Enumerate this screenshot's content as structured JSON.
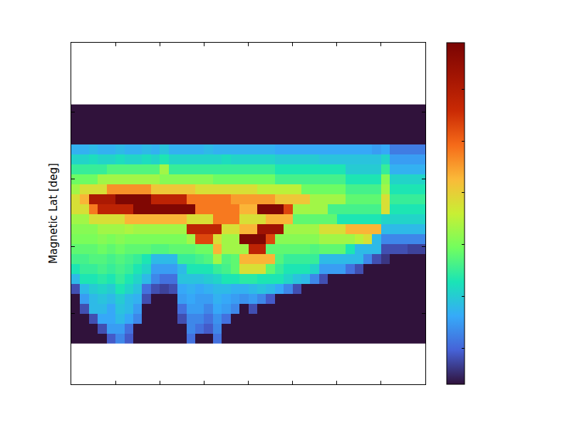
{
  "chart_data": {
    "type": "heatmap",
    "ylabel": "Magnetic Lat [deg]",
    "tick_labels": false,
    "xlim": [
      0,
      8
    ],
    "xticks": [
      1,
      2,
      3,
      4,
      5,
      6,
      7
    ],
    "ylim": [
      -0.05,
      5.03
    ],
    "yticks": [
      1,
      2,
      3,
      4
    ],
    "colorbar": {
      "zlim": [
        0,
        6.6
      ],
      "ticks": [
        0.7,
        1.7,
        2.7,
        3.7,
        4.7,
        5.7
      ]
    },
    "x": [
      0.1,
      0.3,
      0.5,
      0.7,
      0.9,
      1.1,
      1.3,
      1.5,
      1.7,
      1.9,
      2.1,
      2.3,
      2.5,
      2.7,
      2.9,
      3.1,
      3.3,
      3.5,
      3.7,
      3.9,
      4.1,
      4.3,
      4.5,
      4.7,
      4.9,
      5.1,
      5.3,
      5.5,
      5.7,
      5.9,
      6.1,
      6.3,
      6.5,
      6.7,
      6.9,
      7.1,
      7.3,
      7.5,
      7.7,
      7.9
    ],
    "y": [
      0.634,
      0.782,
      0.93,
      1.078,
      1.226,
      1.374,
      1.522,
      1.67,
      1.818,
      1.966,
      2.114,
      2.262,
      2.41,
      2.558,
      2.706,
      2.854,
      3.002,
      3.15,
      3.298,
      3.446,
      3.594,
      3.742,
      3.89,
      4.038
    ],
    "z": [
      [
        0,
        0,
        0,
        0,
        0.6,
        1,
        0.6,
        0,
        0,
        0,
        0,
        0,
        0,
        0.8,
        0,
        0,
        0.8,
        0,
        0,
        0,
        0,
        0,
        0,
        0,
        0,
        0,
        0,
        0,
        0,
        0,
        0,
        0,
        0,
        0,
        0,
        0,
        0,
        0,
        0,
        0
      ],
      [
        0,
        0,
        0,
        0.5,
        1.2,
        1.2,
        0.8,
        0,
        0,
        0,
        0,
        0,
        0,
        1,
        0.8,
        0.6,
        1,
        0,
        0,
        0,
        0,
        0,
        0,
        0,
        0,
        0,
        0,
        0,
        0,
        0,
        0,
        0,
        0,
        0,
        0,
        0,
        0,
        0,
        0,
        0
      ],
      [
        0,
        0,
        0.5,
        1.3,
        1.3,
        1.5,
        1.3,
        1,
        0,
        0,
        0,
        0,
        0.5,
        1,
        1,
        0.8,
        1.1,
        0.8,
        0,
        0,
        0,
        0,
        0,
        0,
        0,
        0,
        0,
        0,
        0,
        0,
        0,
        0,
        0,
        0,
        0,
        0,
        0,
        0,
        0,
        0
      ],
      [
        0,
        0.5,
        1.5,
        1.5,
        1.3,
        1.6,
        1.5,
        1.2,
        0,
        0,
        0,
        0,
        0.8,
        1.2,
        1.2,
        1,
        1.3,
        1.2,
        1,
        0,
        0.5,
        0,
        0,
        0,
        0,
        0,
        0,
        0,
        0,
        0,
        0,
        0,
        0,
        0,
        0,
        0,
        0,
        0,
        0,
        0
      ],
      [
        0,
        1.2,
        1.5,
        1.6,
        1.5,
        1.7,
        1.5,
        1.4,
        0.5,
        0,
        0,
        0,
        1.2,
        1.3,
        1.2,
        1.2,
        1.4,
        1.3,
        1.2,
        1.1,
        1.2,
        1,
        0.6,
        0,
        0,
        0,
        0,
        0,
        0,
        0,
        0,
        0,
        0,
        0,
        0,
        0,
        0,
        0,
        0,
        0
      ],
      [
        0.5,
        1.5,
        1.7,
        1.8,
        1.7,
        2,
        1.8,
        1.6,
        0.8,
        0.5,
        0.4,
        0.5,
        1.3,
        1.4,
        1.3,
        1.4,
        1.5,
        1.5,
        1.4,
        1.4,
        1.5,
        1.6,
        1.5,
        1.3,
        1,
        0.5,
        0,
        0,
        0,
        0,
        0,
        0,
        0,
        0,
        0,
        0,
        0,
        0,
        0,
        0
      ],
      [
        1.5,
        2,
        2,
        2.1,
        2,
        2.2,
        2,
        1.8,
        1.5,
        1,
        0.8,
        0.8,
        1.6,
        1.6,
        1.6,
        1.7,
        1.8,
        2,
        2,
        2.1,
        2.1,
        2,
        2,
        2,
        1.8,
        1.6,
        1.5,
        1,
        0.5,
        0,
        0,
        0,
        0,
        0,
        0,
        0,
        0,
        0,
        0,
        0
      ],
      [
        2,
        2.2,
        2.2,
        2.3,
        2.2,
        2.3,
        2.2,
        2,
        1.8,
        1.2,
        1.2,
        1.2,
        1.5,
        2,
        2,
        2,
        2.2,
        2.3,
        2.5,
        3.5,
        3.5,
        3.5,
        2.5,
        2.2,
        2,
        2,
        2,
        1.8,
        1.2,
        1.2,
        1.2,
        0.8,
        0.5,
        0,
        0,
        0,
        0,
        0,
        0,
        0
      ],
      [
        2.3,
        2.3,
        2.4,
        2.4,
        2.3,
        2.4,
        2.3,
        2.2,
        2,
        1.5,
        1.5,
        1.5,
        2.2,
        2.2,
        2.3,
        2.4,
        3,
        2.4,
        2.5,
        4,
        4,
        4,
        4,
        2.4,
        2.2,
        2.2,
        2.2,
        2.2,
        1.5,
        1.5,
        1.5,
        1.5,
        1.5,
        1,
        0.5,
        0.3,
        0,
        0,
        0,
        0
      ],
      [
        2.5,
        2.5,
        2.5,
        2.6,
        2.5,
        2.6,
        2.5,
        2.5,
        2.5,
        2.4,
        2.4,
        2.5,
        2.5,
        2.5,
        2.6,
        2.6,
        4,
        3,
        3,
        3,
        5.5,
        5.5,
        2.5,
        2.5,
        2.5,
        2.5,
        2.5,
        2.4,
        2.5,
        2.5,
        2.5,
        2,
        1.5,
        1.5,
        1.5,
        0.5,
        0.5,
        0.5,
        0.4,
        0.4
      ],
      [
        2.7,
        2.7,
        2.7,
        2.8,
        2.7,
        2.8,
        2.7,
        2.7,
        2.7,
        2.7,
        2.7,
        2.7,
        2.7,
        3,
        5,
        5,
        3.5,
        3,
        3,
        6.5,
        6.5,
        6.5,
        5,
        2.8,
        2.8,
        2.8,
        2.8,
        2.8,
        3,
        3,
        3,
        3,
        3.2,
        3.5,
        1.5,
        1,
        1,
        1,
        1,
        1
      ],
      [
        2.8,
        2.8,
        2.8,
        3,
        3,
        3,
        3.1,
        3,
        3,
        3,
        3,
        3,
        3,
        5.5,
        5.5,
        5.5,
        5.5,
        3.5,
        3.5,
        4,
        4,
        6,
        6,
        6,
        3,
        3,
        3,
        3,
        3.5,
        3.5,
        3.5,
        4,
        4,
        4,
        4,
        1.5,
        1.5,
        1.5,
        1.5,
        1.5
      ],
      [
        3,
        3,
        3.5,
        3.5,
        3.5,
        3.5,
        4,
        4,
        4,
        4,
        4,
        4,
        4,
        3.5,
        3.5,
        3.5,
        4.5,
        4.5,
        4.5,
        3.5,
        3.5,
        3.5,
        4,
        4,
        4,
        2.5,
        2.5,
        2.5,
        2.5,
        2.5,
        2,
        2,
        2,
        2,
        2,
        1.8,
        1.8,
        1.8,
        1.8,
        1.8
      ],
      [
        3.5,
        3.5,
        4.5,
        5.5,
        5.5,
        5.5,
        5.5,
        6.5,
        6.5,
        6.5,
        6.5,
        6.5,
        6.5,
        6.5,
        4.5,
        4.5,
        4.5,
        4.5,
        4.5,
        4,
        4,
        6.5,
        6.5,
        6.5,
        5,
        3,
        3,
        3,
        3,
        2.3,
        2.3,
        2.3,
        2.3,
        2.3,
        2.3,
        3.5,
        2,
        2,
        2,
        2
      ],
      [
        3.5,
        4,
        5.8,
        5.8,
        5.8,
        6.5,
        6.5,
        6.5,
        6.5,
        5.5,
        5.5,
        5.5,
        5.5,
        4.5,
        4.5,
        4.5,
        4.5,
        4.5,
        4.2,
        4.2,
        4.2,
        4.2,
        4.2,
        3.8,
        3.8,
        3.8,
        3.8,
        3,
        3,
        3,
        3,
        2.5,
        2.5,
        2.5,
        2.5,
        3.5,
        2.2,
        2.2,
        2.2,
        2.2
      ],
      [
        3,
        3.5,
        3.5,
        3.5,
        4.3,
        4.3,
        4.3,
        4.3,
        4.3,
        3.8,
        3.8,
        3.8,
        3.8,
        3.8,
        3.5,
        3.5,
        3.5,
        3.5,
        3.5,
        3.5,
        3.5,
        3.2,
        3.2,
        3.2,
        3.2,
        3.2,
        2.6,
        2.6,
        2.6,
        2.6,
        2.6,
        2.3,
        2.3,
        2.3,
        2.3,
        3,
        2,
        2,
        2,
        2
      ],
      [
        2.6,
        2.6,
        2.6,
        3,
        3,
        3,
        3,
        3,
        3,
        3,
        2.8,
        2.8,
        2.8,
        2.8,
        2.8,
        2.8,
        2.6,
        2.6,
        2.6,
        2.6,
        2.6,
        2.6,
        2.6,
        2.3,
        2.3,
        2.3,
        2.3,
        2.3,
        2.3,
        2.3,
        2.3,
        2,
        2,
        2,
        2,
        2.8,
        1.8,
        1.8,
        1.8,
        1.8
      ],
      [
        2.2,
        2.2,
        2.2,
        2.2,
        2.4,
        2.4,
        2.4,
        2.4,
        2.4,
        2.4,
        3,
        2.2,
        2.2,
        2.2,
        2.2,
        2.2,
        2.2,
        2.2,
        2.2,
        2.2,
        2.2,
        2.2,
        2.2,
        2,
        2,
        2,
        2,
        2,
        2,
        2,
        2,
        1.7,
        1.7,
        1.7,
        1.7,
        2.2,
        1.4,
        1.4,
        1.4,
        1.4
      ],
      [
        1.8,
        1.8,
        1.9,
        1.8,
        1.8,
        1.9,
        1.8,
        1.8,
        1.9,
        1.8,
        2,
        1.8,
        1.8,
        1.8,
        1.8,
        1.8,
        1.8,
        1.9,
        1.8,
        1.8,
        1.8,
        1.8,
        1.8,
        1.7,
        1.7,
        1.7,
        1.7,
        1.7,
        1.6,
        1.6,
        1.6,
        1.6,
        1.6,
        1.6,
        1.6,
        1.8,
        1.2,
        1.2,
        1.2,
        1.2
      ],
      [
        1.4,
        1.4,
        1.5,
        1.4,
        1.4,
        1.5,
        1.4,
        1.4,
        1.5,
        1.4,
        1.6,
        1.4,
        1.4,
        1.4,
        1.4,
        1.5,
        1.4,
        1.4,
        1.4,
        1.4,
        1.4,
        1.4,
        1.4,
        1.3,
        1.3,
        1.3,
        1.3,
        1.3,
        1.3,
        1.3,
        1.3,
        1.3,
        1.3,
        1.3,
        1.2,
        1.3,
        0.9,
        0.9,
        0.9,
        0.9
      ],
      [
        0,
        0,
        0,
        0,
        0,
        0,
        0,
        0,
        0,
        0,
        0,
        0,
        0,
        0,
        0,
        0,
        0,
        0,
        0,
        0,
        0,
        0,
        0,
        0,
        0,
        0,
        0,
        0,
        0,
        0,
        0,
        0,
        0,
        0,
        0,
        0,
        0,
        0,
        0,
        0
      ],
      [
        0,
        0,
        0,
        0,
        0,
        0,
        0,
        0,
        0,
        0,
        0,
        0,
        0,
        0,
        0,
        0,
        0,
        0,
        0,
        0,
        0,
        0,
        0,
        0,
        0,
        0,
        0,
        0,
        0,
        0,
        0,
        0,
        0,
        0,
        0,
        0,
        0,
        0,
        0,
        0
      ],
      [
        0,
        0,
        0,
        0,
        0,
        0,
        0,
        0,
        0,
        0,
        0,
        0,
        0,
        0,
        0,
        0,
        0,
        0,
        0,
        0,
        0,
        0,
        0,
        0,
        0,
        0,
        0,
        0,
        0,
        0,
        0,
        0,
        0,
        0,
        0,
        0,
        0,
        0,
        0,
        0
      ],
      [
        0,
        0,
        0,
        0,
        0,
        0,
        0,
        0,
        0,
        0,
        0,
        0,
        0,
        0,
        0,
        0,
        0,
        0,
        0,
        0,
        0,
        0,
        0,
        0,
        0,
        0,
        0,
        0,
        0,
        0,
        0,
        0,
        0,
        0,
        0,
        0,
        0,
        0,
        0,
        0
      ]
    ]
  }
}
